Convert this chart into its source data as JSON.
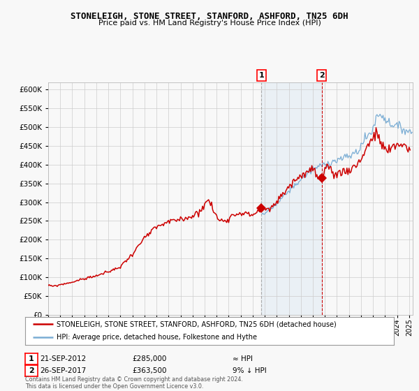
{
  "title": "STONELEIGH, STONE STREET, STANFORD, ASHFORD, TN25 6DH",
  "subtitle": "Price paid vs. HM Land Registry's House Price Index (HPI)",
  "legend_line1": "STONELEIGH, STONE STREET, STANFORD, ASHFORD, TN25 6DH (detached house)",
  "legend_line2": "HPI: Average price, detached house, Folkestone and Hythe",
  "annotation_text": "Contains HM Land Registry data © Crown copyright and database right 2024.\nThis data is licensed under the Open Government Licence v3.0.",
  "sale1_label": "21-SEP-2012",
  "sale1_price": 285000,
  "sale1_price_str": "£285,000",
  "sale1_hpi_note": "≈ HPI",
  "sale1_t": 2012.72,
  "sale2_label": "26-SEP-2017",
  "sale2_price": 363500,
  "sale2_price_str": "£363,500",
  "sale2_hpi_note": "9% ↓ HPI",
  "sale2_t": 2017.74,
  "hpi_color": "#7aadd4",
  "price_color": "#cc0000",
  "marker_color": "#cc0000",
  "shade_color": "#ddeeff",
  "background_color": "#f8f8f8",
  "grid_color": "#cccccc",
  "ylim": [
    0,
    620000
  ],
  "yticks": [
    0,
    50000,
    100000,
    150000,
    200000,
    250000,
    300000,
    350000,
    400000,
    450000,
    500000,
    550000,
    600000
  ],
  "xlim_start": 1995.0,
  "xlim_end": 2025.3
}
